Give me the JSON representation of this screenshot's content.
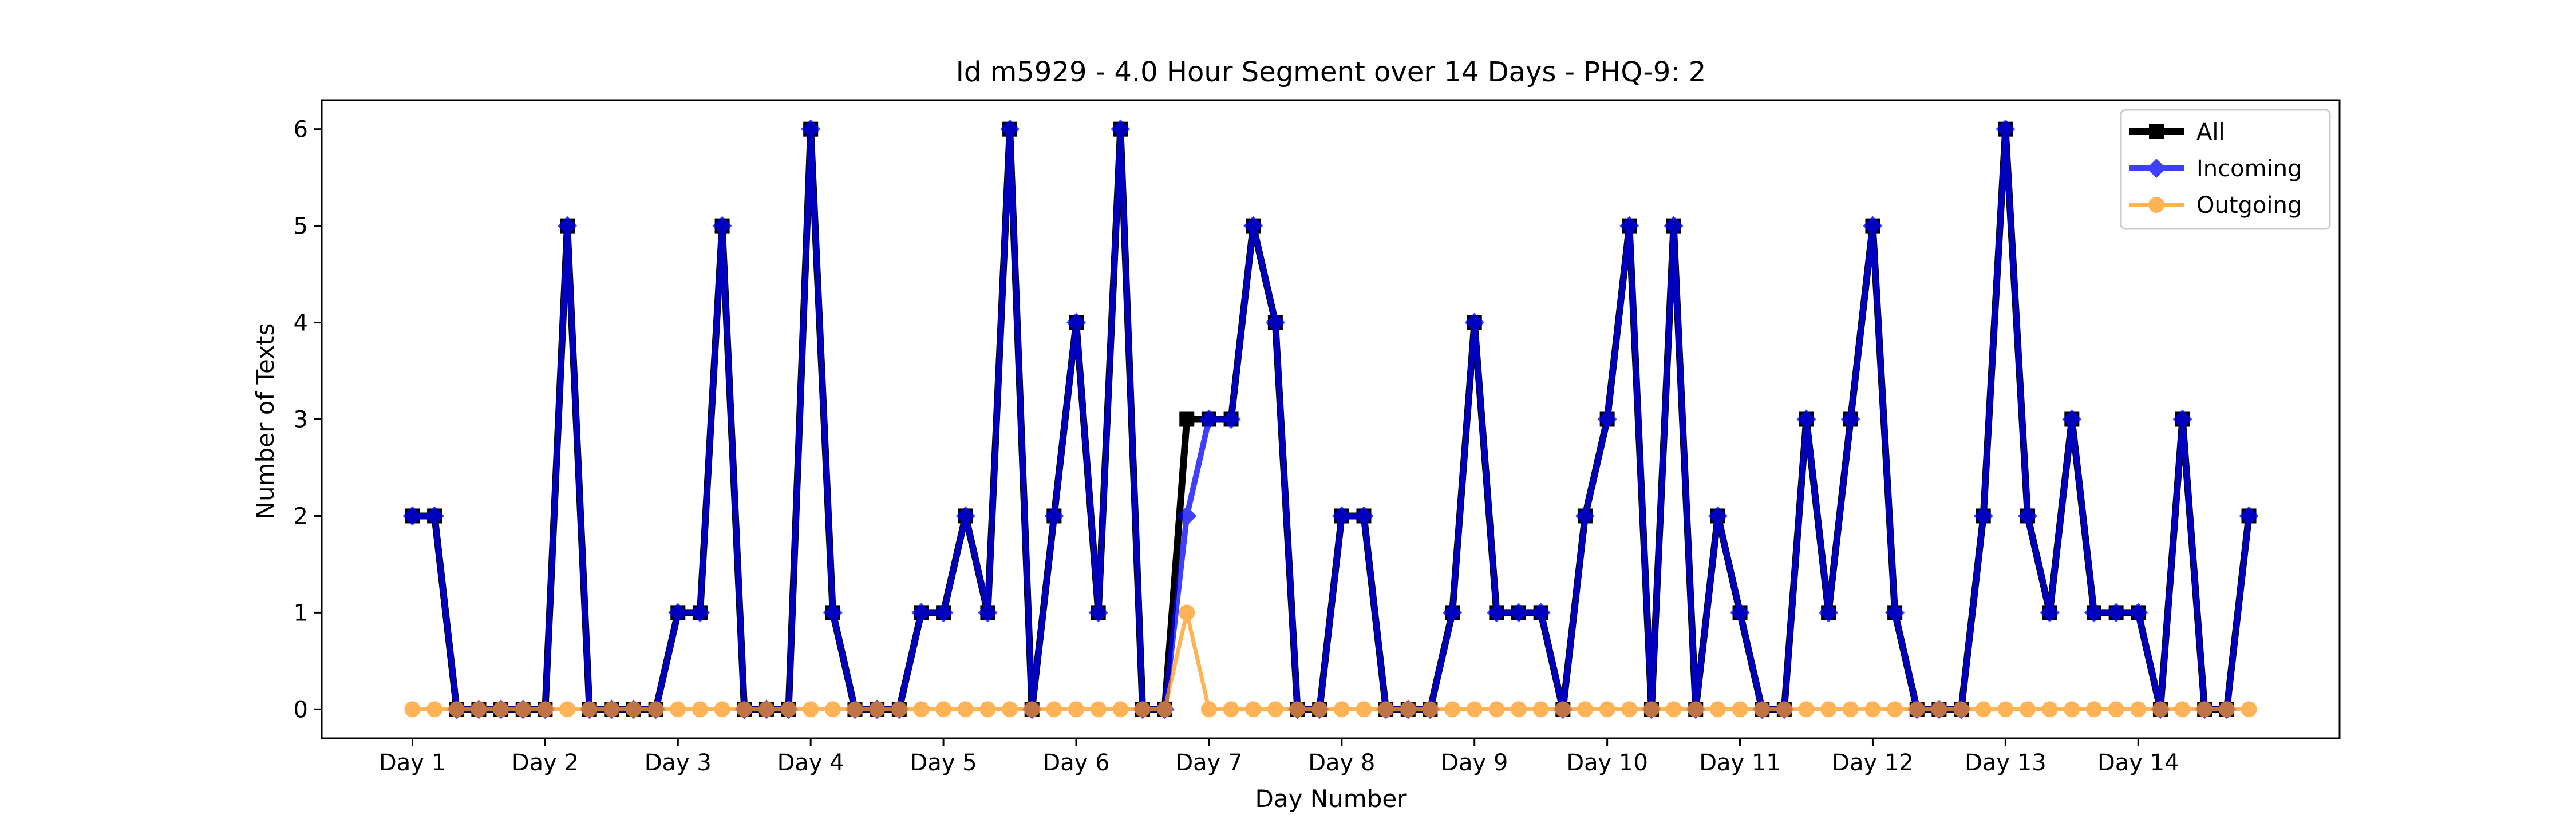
{
  "chart_data": {
    "type": "line",
    "title": "Id m5929 - 4.0 Hour Segment over 14 Days - PHQ-9: 2",
    "xlabel": "Day Number",
    "ylabel": "Number of Texts",
    "ylim": [
      -0.3,
      6.3
    ],
    "y_ticks": [
      0,
      1,
      2,
      3,
      4,
      5,
      6
    ],
    "x_ticks": [
      "Day 1",
      "Day 2",
      "Day 3",
      "Day 4",
      "Day 5",
      "Day 6",
      "Day 7",
      "Day 8",
      "Day 9",
      "Day 10",
      "Day 11",
      "Day 12",
      "Day 13",
      "Day 14"
    ],
    "x_tick_positions": [
      0,
      6,
      12,
      18,
      24,
      30,
      36,
      42,
      48,
      54,
      60,
      66,
      72,
      78
    ],
    "xlim": [
      -4.1,
      87.1
    ],
    "grid": false,
    "legend_position": "top-right",
    "series": [
      {
        "name": "All",
        "color": "#000000",
        "marker": "square",
        "values": [
          2,
          2,
          0,
          0,
          0,
          0,
          0,
          5,
          0,
          0,
          0,
          0,
          1,
          1,
          5,
          0,
          0,
          0,
          6,
          1,
          0,
          0,
          0,
          1,
          1,
          2,
          1,
          6,
          0,
          2,
          4,
          1,
          6,
          0,
          0,
          3,
          3,
          3,
          5,
          4,
          0,
          0,
          2,
          2,
          0,
          0,
          0,
          1,
          4,
          1,
          1,
          1,
          0,
          2,
          3,
          5,
          0,
          5,
          0,
          2,
          1,
          0,
          0,
          3,
          1,
          3,
          5,
          1,
          0,
          0,
          0,
          2,
          6,
          2,
          1,
          3,
          1,
          1,
          1,
          0,
          3,
          0,
          0,
          2
        ]
      },
      {
        "name": "Incoming",
        "color": "#0000ff",
        "marker": "diamond",
        "values": [
          2,
          2,
          0,
          0,
          0,
          0,
          0,
          5,
          0,
          0,
          0,
          0,
          1,
          1,
          5,
          0,
          0,
          0,
          6,
          1,
          0,
          0,
          0,
          1,
          1,
          2,
          1,
          6,
          0,
          2,
          4,
          1,
          6,
          0,
          0,
          2,
          3,
          3,
          5,
          4,
          0,
          0,
          2,
          2,
          0,
          0,
          0,
          1,
          4,
          1,
          1,
          1,
          0,
          2,
          3,
          5,
          0,
          5,
          0,
          2,
          1,
          0,
          0,
          3,
          1,
          3,
          5,
          1,
          0,
          0,
          0,
          2,
          6,
          2,
          1,
          3,
          1,
          1,
          1,
          0,
          3,
          0,
          0,
          2
        ]
      },
      {
        "name": "Outgoing",
        "color": "#ff9a1f",
        "marker": "circle",
        "values": [
          0,
          0,
          0,
          0,
          0,
          0,
          0,
          0,
          0,
          0,
          0,
          0,
          0,
          0,
          0,
          0,
          0,
          0,
          0,
          0,
          0,
          0,
          0,
          0,
          0,
          0,
          0,
          0,
          0,
          0,
          0,
          0,
          0,
          0,
          0,
          1,
          0,
          0,
          0,
          0,
          0,
          0,
          0,
          0,
          0,
          0,
          0,
          0,
          0,
          0,
          0,
          0,
          0,
          0,
          0,
          0,
          0,
          0,
          0,
          0,
          0,
          0,
          0,
          0,
          0,
          0,
          0,
          0,
          0,
          0,
          0,
          0,
          0,
          0,
          0,
          0,
          0,
          0,
          0,
          0,
          0,
          0,
          0,
          0
        ]
      }
    ]
  }
}
